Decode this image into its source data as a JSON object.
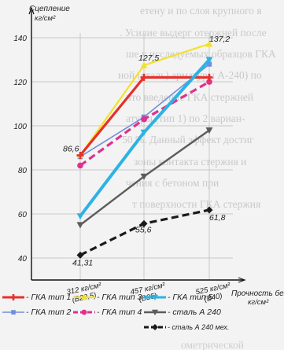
{
  "chart_data": {
    "type": "line",
    "ylabel": "Сцепление кг/см²",
    "xlabel": "Прочность бетона кг/см²",
    "ylim": [
      30,
      150
    ],
    "yticks": [
      40,
      60,
      80,
      100,
      120,
      140
    ],
    "grid": true,
    "legend_position": "bottom",
    "categories": [
      "312 кг/см² (В22,5)",
      "457 кг/см² (В35)",
      "525 кг/см² (В40)"
    ],
    "x_labels": [
      {
        "value": "312 кг/см²",
        "grade": "(В22,5)"
      },
      {
        "value": "457 кг/см²",
        "grade": "(В35)"
      },
      {
        "value": "525 кг/см²",
        "grade": "(В40)"
      }
    ],
    "series": [
      {
        "name": "- ГКА тип 1",
        "color": "#e5312a",
        "values": [
          86.6,
          122,
          122
        ],
        "marker": "plus",
        "dash": "solid",
        "width": 3.2
      },
      {
        "name": "- ГКА тип 2",
        "color": "#6f8fdc",
        "values": [
          86,
          104,
          128
        ],
        "marker": "square",
        "dash": "solid",
        "width": 1.6
      },
      {
        "name": "- ГКА тип 3",
        "color": "#f2e12c",
        "values": [
          86.6,
          127.5,
          137.2
        ],
        "marker": "triangle",
        "dash": "solid",
        "width": 2.2
      },
      {
        "name": "- ГКА тип 4",
        "color": "#e0318f",
        "values": [
          82,
          103,
          120
        ],
        "marker": "circle",
        "dash": "dashed",
        "width": 3.2
      },
      {
        "name": "- ГКА тип 5",
        "color": "#2eb2e4",
        "values": [
          59,
          97,
          130
        ],
        "marker": "tridown",
        "dash": "solid",
        "width": 4
      },
      {
        "name": "- сталь А 240",
        "color": "#5c5c5c",
        "values": [
          55,
          77,
          98
        ],
        "marker": "tridown",
        "dash": "solid",
        "width": 2.4
      },
      {
        "name": "- сталь А 240 мех.",
        "color": "#1a1a1a",
        "values": [
          41.31,
          55.6,
          61.8
        ],
        "marker": "diamond",
        "dash": "dashed",
        "width": 3.2
      }
    ],
    "annotations": [
      {
        "text": "86,6"
      },
      {
        "text": "127,5"
      },
      {
        "text": "137,2"
      },
      {
        "text": "41,31"
      },
      {
        "text": "55,6"
      },
      {
        "text": "61,8"
      }
    ]
  },
  "background_text": [
    "етену и по слоя крупного я",
    ". Усилие выдерг отержней после",
    "ше у исследуемых образцов ГКА",
    "ной (сталь) арматуры А-240) по",
    "что введение ГКА стержней",
    "атуры (тип 1) по 2 вариан-",
    "50 %. Данный эффект  достиг",
    "зоны контакта стержня и",
    "чения с бетоном при",
    "т поверхности ГКА стержня"
  ]
}
